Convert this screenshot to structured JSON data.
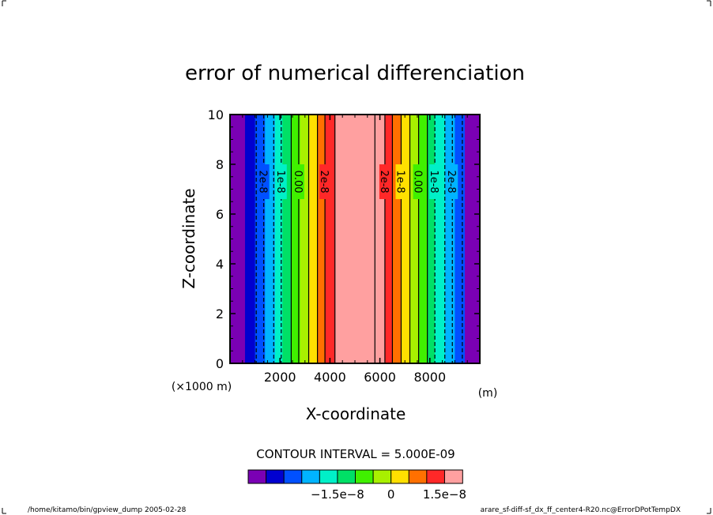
{
  "chart_data": {
    "type": "heatmap",
    "title": "error of numerical differenciation",
    "xlabel": "X-coordinate",
    "ylabel": "Z-coordinate",
    "x_ticks": [
      2000,
      4000,
      6000,
      8000
    ],
    "x_tick_labels": [
      "2000",
      "4000",
      "6000",
      "8000"
    ],
    "y_ticks": [
      0,
      2,
      4,
      6,
      8,
      10
    ],
    "y_tick_labels": [
      "0",
      "2",
      "4",
      "6",
      "8",
      "10"
    ],
    "xlim": [
      0,
      10000
    ],
    "ylim": [
      0,
      10
    ],
    "x_scale_note": "(×1000 m)",
    "x_unit": "(m)",
    "contour_interval_text": "CONTOUR INTERVAL = 5.000E-09",
    "field_varies_along": "x",
    "bands": [
      {
        "x0": 0,
        "x1": 600,
        "level": -4e-08
      },
      {
        "x0": 600,
        "x1": 1000,
        "level": -3.5e-08
      },
      {
        "x0": 1000,
        "x1": 1400,
        "level": -3e-08
      },
      {
        "x0": 1400,
        "x1": 1800,
        "level": -2.5e-08
      },
      {
        "x0": 1800,
        "x1": 2100,
        "level": -2e-08
      },
      {
        "x0": 2100,
        "x1": 2450,
        "level": -1.5e-08
      },
      {
        "x0": 2450,
        "x1": 2800,
        "level": -1e-08
      },
      {
        "x0": 2800,
        "x1": 3150,
        "level": -5e-09
      },
      {
        "x0": 3150,
        "x1": 3500,
        "level": 0.0
      },
      {
        "x0": 3500,
        "x1": 3800,
        "level": 5e-09
      },
      {
        "x0": 3800,
        "x1": 4200,
        "level": 1e-08
      },
      {
        "x0": 4200,
        "x1": 5800,
        "level": 2e-08
      },
      {
        "x0": 5800,
        "x1": 6200,
        "level": 1.5e-08
      },
      {
        "x0": 6200,
        "x1": 6500,
        "level": 1e-08
      },
      {
        "x0": 6500,
        "x1": 6850,
        "level": 5e-09
      },
      {
        "x0": 6850,
        "x1": 7200,
        "level": 0.0
      },
      {
        "x0": 7200,
        "x1": 7550,
        "level": -5e-09
      },
      {
        "x0": 7550,
        "x1": 7900,
        "level": -1e-08
      },
      {
        "x0": 7900,
        "x1": 8200,
        "level": -1.5e-08
      },
      {
        "x0": 8200,
        "x1": 8600,
        "level": -2e-08
      },
      {
        "x0": 8600,
        "x1": 9000,
        "level": -2.5e-08
      },
      {
        "x0": 9000,
        "x1": 9400,
        "level": -3e-08
      },
      {
        "x0": 9400,
        "x1": 10000,
        "level": -4e-08
      }
    ],
    "contour_lines": [
      {
        "x": 1050,
        "label": "",
        "dashed": true
      },
      {
        "x": 1350,
        "label": "2e-8",
        "dashed": true
      },
      {
        "x": 1750,
        "label": "",
        "dashed": true
      },
      {
        "x": 2050,
        "label": "1e-8",
        "dashed": true
      },
      {
        "x": 2450,
        "label": "",
        "dashed": false
      },
      {
        "x": 2750,
        "label": "0.00",
        "dashed": false
      },
      {
        "x": 3150,
        "label": "",
        "dashed": false
      },
      {
        "x": 3500,
        "label": "",
        "dashed": false
      },
      {
        "x": 3800,
        "label": "2e-8",
        "dashed": false
      },
      {
        "x": 4200,
        "label": "",
        "dashed": false
      },
      {
        "x": 5800,
        "label": "",
        "dashed": false
      },
      {
        "x": 6200,
        "label": "2e-8",
        "dashed": false
      },
      {
        "x": 6500,
        "label": "",
        "dashed": false
      },
      {
        "x": 6850,
        "label": "1e-8",
        "dashed": false
      },
      {
        "x": 7200,
        "label": "",
        "dashed": false
      },
      {
        "x": 7550,
        "label": "0.00",
        "dashed": false
      },
      {
        "x": 7900,
        "label": "",
        "dashed": false
      },
      {
        "x": 8200,
        "label": "1e-8",
        "dashed": true
      },
      {
        "x": 8600,
        "label": "",
        "dashed": true
      },
      {
        "x": 8900,
        "label": "2e-8",
        "dashed": true
      },
      {
        "x": 9300,
        "label": "",
        "dashed": true
      }
    ],
    "colorbar": {
      "colors": [
        "#7a00b4",
        "#0000d0",
        "#0050ff",
        "#00b4ff",
        "#00f0c8",
        "#00e066",
        "#40f000",
        "#a8f000",
        "#ffe000",
        "#ff7000",
        "#ff2828",
        "#ffa0a0"
      ],
      "levels": [
        -4e-08,
        -3.5e-08,
        -3e-08,
        -2.5e-08,
        -2e-08,
        -1.5e-08,
        -1e-08,
        -5e-09,
        0.0,
        5e-09,
        1e-08,
        1.5e-08,
        2e-08
      ],
      "tick_labels": [
        "−1.5e−8",
        "0",
        "1.5e−8"
      ],
      "tick_values": [
        -1.5e-08,
        0.0,
        1.5e-08
      ]
    }
  },
  "footer": {
    "left": "/home/kitamo/bin/gpview_dump  2005-02-28",
    "right": "arare_sf-diff-sf_dx_ff_center4-R20.nc@ErrorDPotTempDX"
  }
}
